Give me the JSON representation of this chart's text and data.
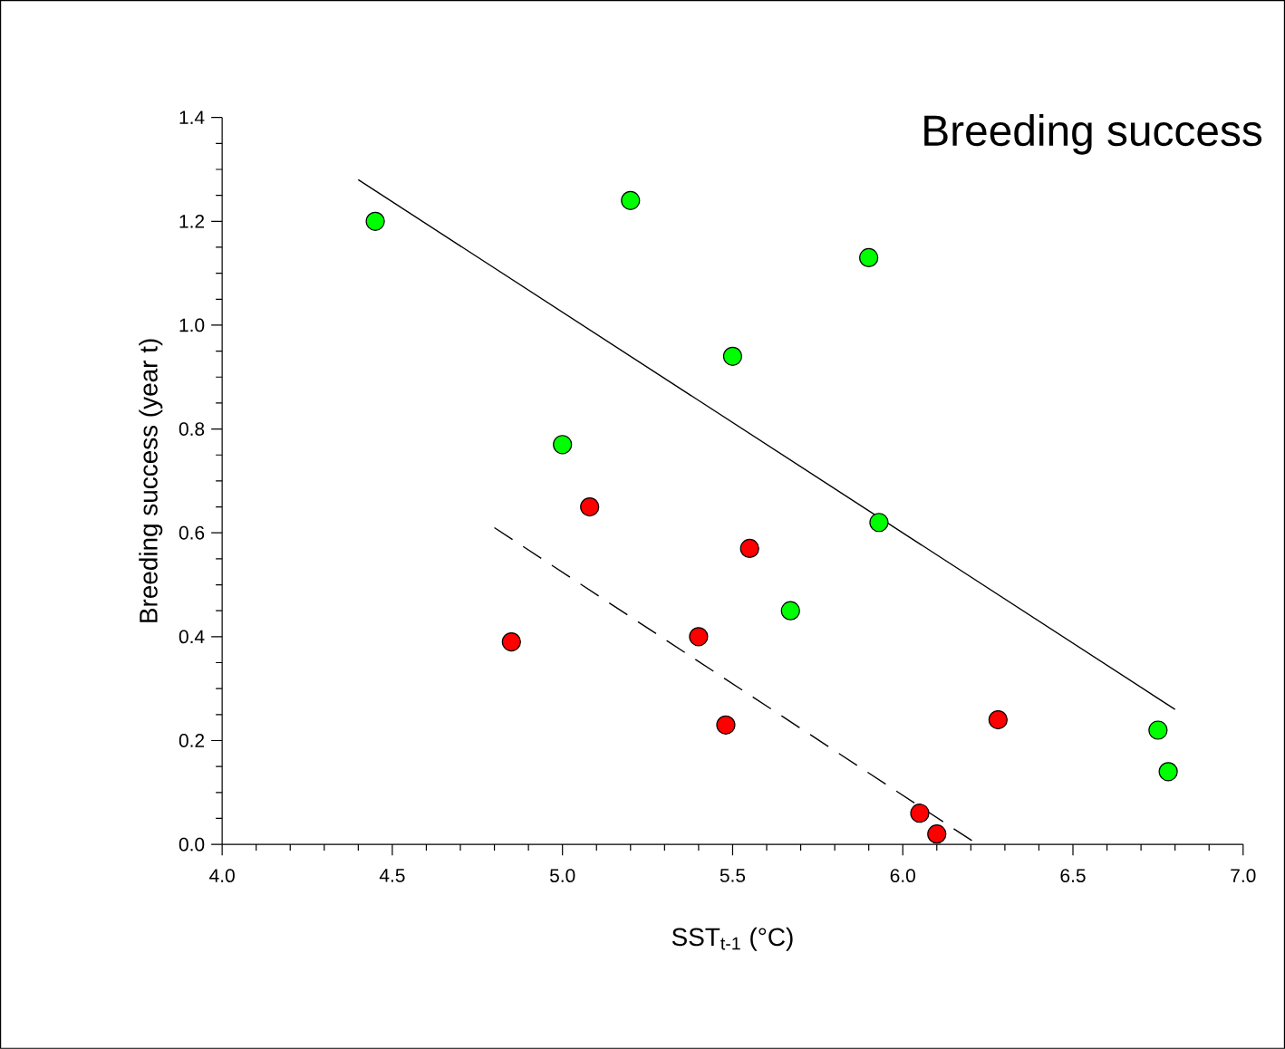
{
  "chart_data": {
    "type": "scatter",
    "title": "Breeding success",
    "xlabel": "SST$_{t-1}$ (°C)",
    "ylabel": "Breeding success (year t)",
    "xlim": [
      4.0,
      7.0
    ],
    "xticks": [
      {
        "value": 4.0,
        "label": "4.0"
      },
      4.5,
      {
        "value": 5.0,
        "label": "5.0"
      },
      5.5,
      {
        "value": 6.0,
        "label": "6.0"
      },
      6.5,
      {
        "value": 7.0,
        "label": "7.0"
      }
    ],
    "ylim": [
      0.0,
      1.4
    ],
    "yticks": [
      {
        "value": 0.0,
        "label": "0.0"
      },
      0.2,
      0.4,
      0.6,
      0.8,
      {
        "value": 1.0,
        "label": "1.0"
      },
      1.2,
      1.4
    ],
    "series": [
      {
        "marker": "circle",
        "color": "#00ff00",
        "x": [
          4.45,
          5.2,
          5.0,
          5.5,
          5.9,
          5.93,
          5.67,
          6.75,
          6.78
        ],
        "values": [
          1.2,
          1.24,
          0.77,
          0.94,
          1.13,
          0.62,
          0.45,
          0.22,
          0.14
        ]
      },
      {
        "marker": "circle",
        "color": "#ff0000",
        "x": [
          4.85,
          5.08,
          5.4,
          5.55,
          5.48,
          6.28,
          6.05,
          6.1
        ],
        "values": [
          0.39,
          0.65,
          0.4,
          0.57,
          0.23,
          0.24,
          0.06,
          0.02
        ]
      },
      {
        "type": "line",
        "marker": "none",
        "color": "#000000",
        "line_style": "solid",
        "x": [
          4.4,
          6.8
        ],
        "values": [
          1.28,
          0.26
        ]
      },
      {
        "type": "line",
        "marker": "none",
        "color": "#000000",
        "line_style": "dashed",
        "x": [
          4.8,
          6.22
        ],
        "values": [
          0.61,
          0.0
        ]
      }
    ]
  }
}
